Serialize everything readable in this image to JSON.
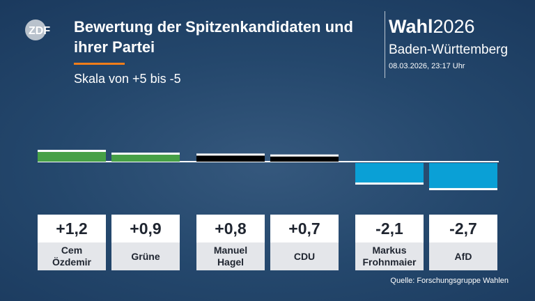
{
  "header": {
    "title": "Bewertung der Spitzenkandidaten und ihrer Partei",
    "subtitle": "Skala von +5 bis -5",
    "logo_text": "ZDF",
    "brand_bold": "Wahl",
    "brand_year": "2026",
    "region": "Baden-Württemberg",
    "datetime": "08.03.2026, 23:17 Uhr"
  },
  "footer": {
    "source": "Quelle: Forschungsgruppe Wahlen"
  },
  "colors": {
    "accent": "#f07d1a",
    "gruene": "#46a046",
    "cdu": "#000000",
    "afd": "#0aa0d6",
    "label_box": "#ffffff",
    "name_box": "#e4e6ea"
  },
  "chart_data": {
    "type": "bar",
    "scale": [
      -5,
      5
    ],
    "categories": [
      "Cem Özdemir",
      "Grüne",
      "Manuel Hagel",
      "CDU",
      "Markus Frohnmaier",
      "AfD"
    ],
    "labels": [
      [
        "Cem",
        "Özdemir"
      ],
      [
        "Grüne"
      ],
      [
        "Manuel",
        "Hagel"
      ],
      [
        "CDU"
      ],
      [
        "Markus",
        "Frohnmaier"
      ],
      [
        "AfD"
      ]
    ],
    "values": [
      1.2,
      0.9,
      0.8,
      0.7,
      -2.1,
      -2.7
    ],
    "value_labels": [
      "+1,2",
      "+0,9",
      "+0,8",
      "+0,7",
      "-2,1",
      "-2,7"
    ],
    "colors": [
      "#46a046",
      "#46a046",
      "#000000",
      "#000000",
      "#0aa0d6",
      "#0aa0d6"
    ]
  }
}
